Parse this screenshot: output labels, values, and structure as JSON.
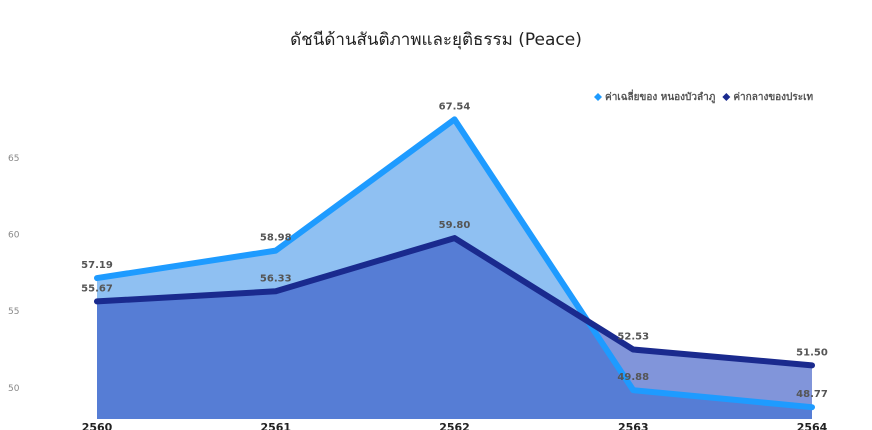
{
  "chart_data": {
    "type": "area",
    "title": "ดัชนีด้านสันติภาพและยุติธรรม (Peace)",
    "categories": [
      "2560",
      "2561",
      "2562",
      "2563",
      "2564"
    ],
    "series": [
      {
        "name": "ค่าเฉลี่ยของ หนองบัวลำภู",
        "color": "#1e9bff",
        "area_color": "#8fc0f2",
        "values": [
          57.19,
          58.98,
          67.54,
          49.88,
          48.77
        ],
        "value_labels": [
          "57.19",
          "58.98",
          "67.54",
          "49.88",
          "48.77"
        ]
      },
      {
        "name": "ค่ากลางของประเท",
        "color": "#1a2a8e",
        "area_color": "rgba(52,84,196,0.62)",
        "values": [
          55.67,
          56.33,
          59.8,
          52.53,
          51.5
        ],
        "value_labels": [
          "55.67",
          "56.33",
          "59.80",
          "52.53",
          "51.50"
        ]
      }
    ],
    "ylim": [
      48,
      69
    ],
    "yticks": [
      50,
      55,
      60,
      65
    ],
    "legend": "top-right"
  }
}
